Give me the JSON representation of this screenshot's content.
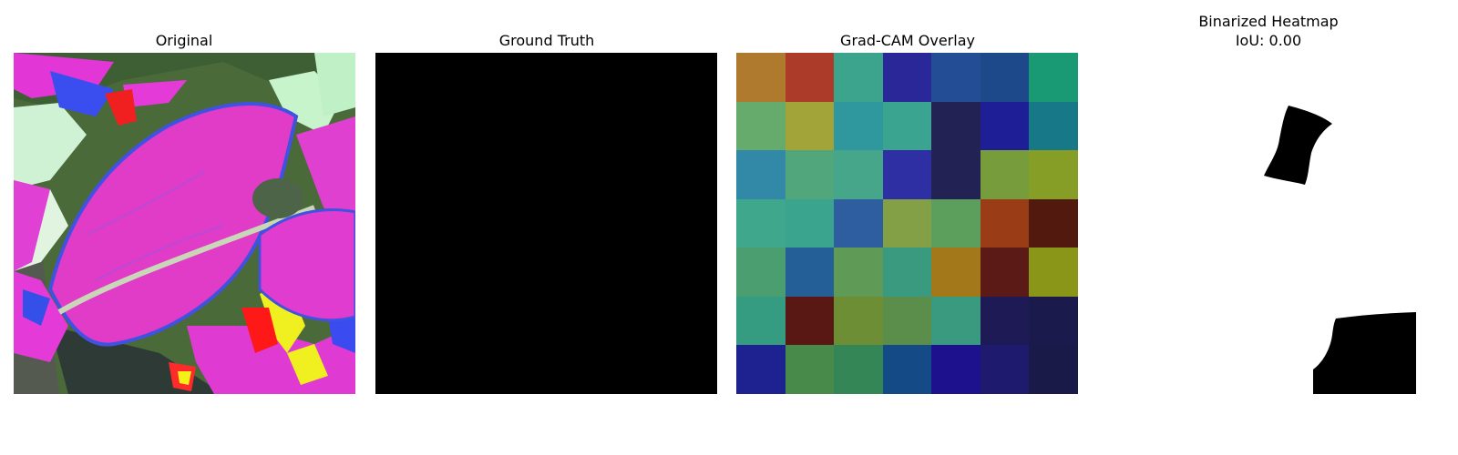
{
  "panels": [
    {
      "title": "Original"
    },
    {
      "title": "Ground Truth"
    },
    {
      "title": "Grad-CAM Overlay"
    },
    {
      "title": "Binarized Heatmap",
      "subtitle": "IoU: 0.00"
    }
  ],
  "overlay_grid": {
    "rows": 7,
    "cols": 7,
    "colors": [
      [
        "#b07a2e",
        "#ad3b2a",
        "#3ca38c",
        "#2a2898",
        "#234e96",
        "#1d488a",
        "#1a9a74"
      ],
      [
        "#66aa6c",
        "#a2a43a",
        "#2f989e",
        "#3aa491",
        "#222255",
        "#1e1e96",
        "#177888"
      ],
      [
        "#3289a7",
        "#52a67c",
        "#45a68a",
        "#2e2fa2",
        "#222255",
        "#769c3c",
        "#869e26"
      ],
      [
        "#3fa88c",
        "#3aa48e",
        "#2e5ea0",
        "#84a046",
        "#5c9e5c",
        "#9a3c16",
        "#521a0e"
      ],
      [
        "#4a9e70",
        "#255f98",
        "#5f9a56",
        "#3a9a80",
        "#a2781a",
        "#5c1a16",
        "#8a9618"
      ],
      [
        "#359c82",
        "#5a1814",
        "#6e8e36",
        "#5b8e4a",
        "#3a9a80",
        "#1e1a55",
        "#1a1a4c"
      ],
      [
        "#1e2290",
        "#488a4a",
        "#348656",
        "#144a86",
        "#1e118e",
        "#1e1a6e",
        "#1a1a48"
      ]
    ]
  }
}
